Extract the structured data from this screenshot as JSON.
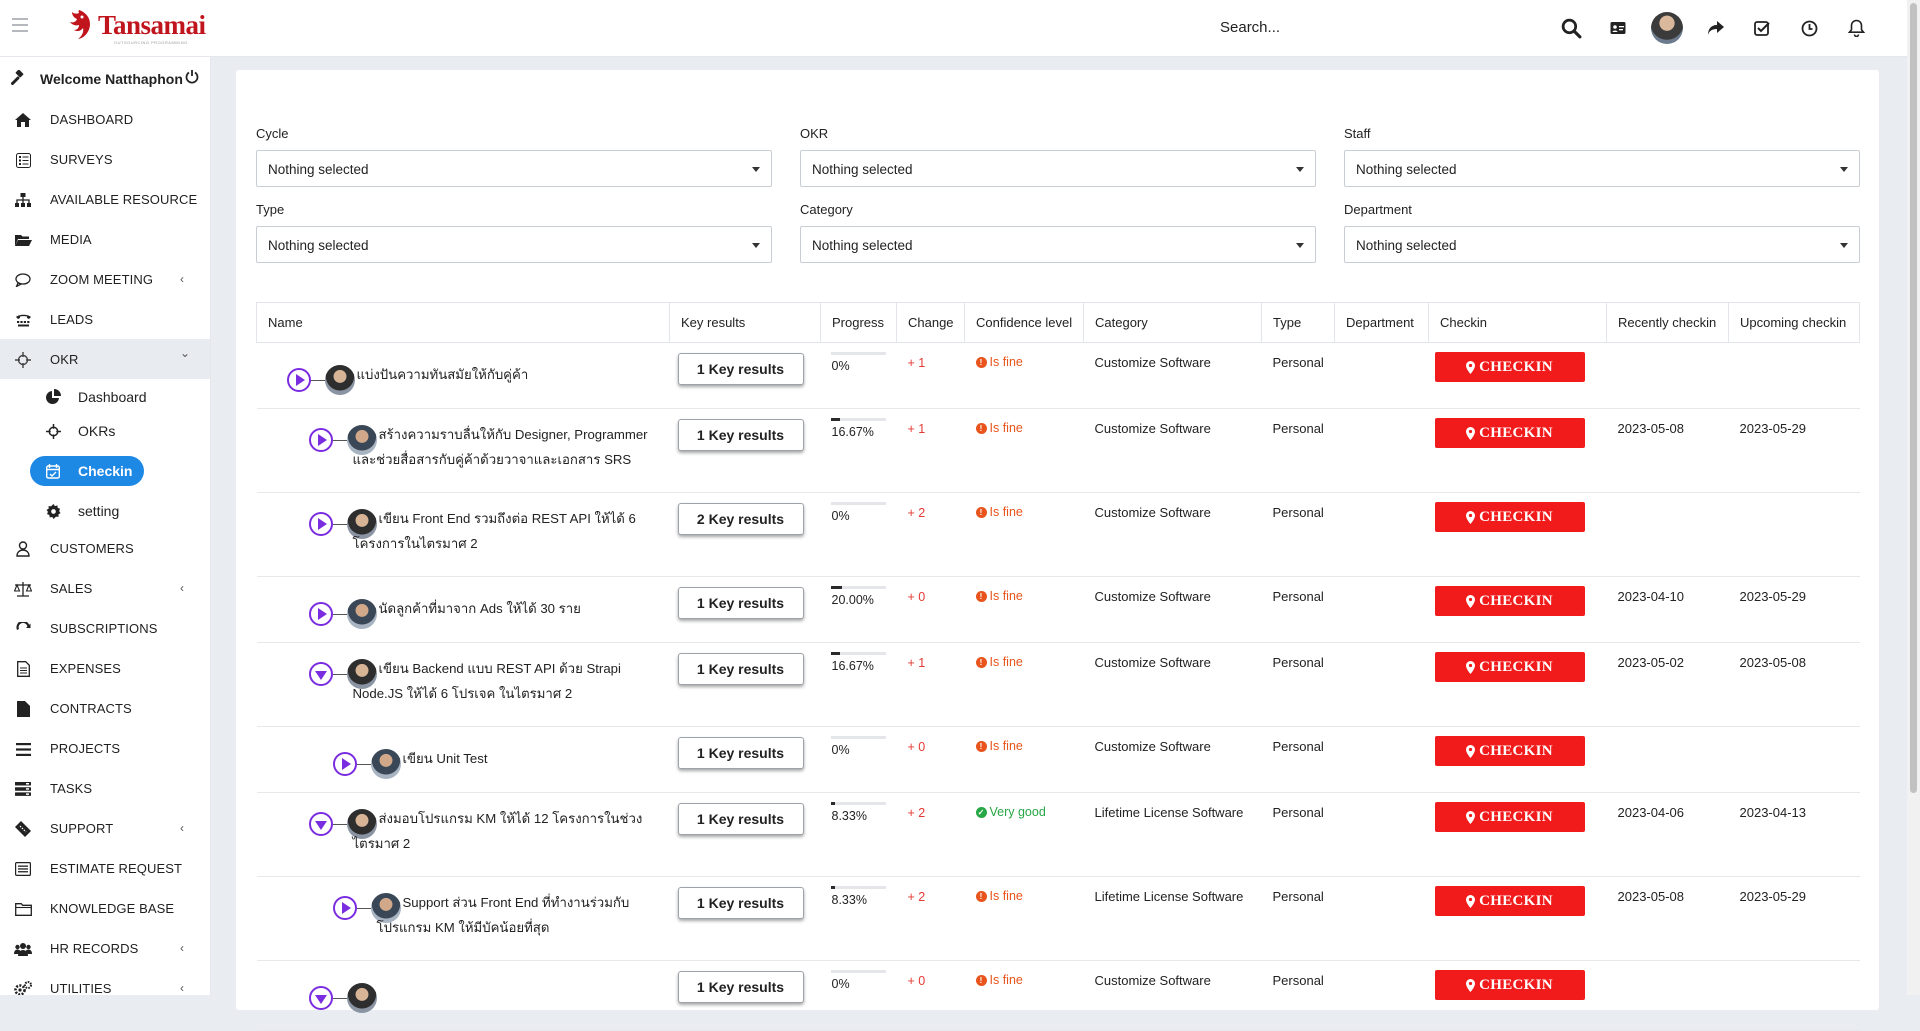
{
  "app": {
    "brand": "Tansamai",
    "brand_tagline": "OUTSOURCING PROGRAMMING"
  },
  "header": {
    "search_placeholder": "Search..."
  },
  "sidebar": {
    "welcome": "Welcome Natthaphon",
    "items": [
      {
        "label": "DASHBOARD",
        "icon": "home-icon"
      },
      {
        "label": "SURVEYS",
        "icon": "survey-icon"
      },
      {
        "label": "AVAILABLE RESOURCE",
        "icon": "sitemap-icon"
      },
      {
        "label": "MEDIA",
        "icon": "folder-open-icon"
      },
      {
        "label": "ZOOM MEETING",
        "icon": "chat-bubble-icon",
        "chevron": "‹"
      },
      {
        "label": "LEADS",
        "icon": "tty-icon"
      },
      {
        "label": "OKR",
        "icon": "crosshairs-icon",
        "chevron": "⌄"
      },
      {
        "label": "CUSTOMERS",
        "icon": "user-icon"
      },
      {
        "label": "SALES",
        "icon": "balance-scale-icon",
        "chevron": "‹"
      },
      {
        "label": "SUBSCRIPTIONS",
        "icon": "refresh-icon"
      },
      {
        "label": "EXPENSES",
        "icon": "file-text-icon"
      },
      {
        "label": "CONTRACTS",
        "icon": "file-icon"
      },
      {
        "label": "PROJECTS",
        "icon": "bars-icon"
      },
      {
        "label": "TASKS",
        "icon": "tasks-icon"
      },
      {
        "label": "SUPPORT",
        "icon": "ticket-icon",
        "chevron": "‹"
      },
      {
        "label": "ESTIMATE REQUEST",
        "icon": "list-alt-icon"
      },
      {
        "label": "KNOWLEDGE BASE",
        "icon": "folder-icon"
      },
      {
        "label": "HR RECORDS",
        "icon": "users-icon",
        "chevron": "‹"
      },
      {
        "label": "UTILITIES",
        "icon": "cogs-icon",
        "chevron": "‹"
      }
    ],
    "okr_sub": [
      {
        "label": "Dashboard",
        "icon": "pie-chart-icon"
      },
      {
        "label": "OKRs",
        "icon": "crosshairs-icon"
      },
      {
        "label": "Checkin",
        "icon": "calendar-check-icon"
      },
      {
        "label": "setting",
        "icon": "gear-icon"
      }
    ]
  },
  "filters": [
    {
      "label": "Cycle",
      "value": "Nothing selected"
    },
    {
      "label": "OKR",
      "value": "Nothing selected"
    },
    {
      "label": "Staff",
      "value": "Nothing selected"
    },
    {
      "label": "Type",
      "value": "Nothing selected"
    },
    {
      "label": "Category",
      "value": "Nothing selected"
    },
    {
      "label": "Department",
      "value": "Nothing selected"
    }
  ],
  "table": {
    "headers": [
      "Name",
      "Key results",
      "Progress",
      "Change",
      "Confidence level",
      "Category",
      "Type",
      "Department",
      "Checkin",
      "Recently checkin",
      "Upcoming checkin"
    ],
    "checkin_label": "CHECKIN",
    "rows": [
      {
        "name": "แบ่งปันความทันสมัยให้กับคู่ค้า",
        "kr": "1 Key results",
        "progress": "0%",
        "pct": 0,
        "change": "+ 1",
        "confidence": "Is fine",
        "category": "Customize Software",
        "type": "Personal",
        "recent": "",
        "upcoming": ""
      },
      {
        "name": "สร้างความราบลื่นให้กับ Designer, Programmer และช่วยสื่อสารกับคู่ค้าด้วยวาจาและเอกสาร SRS",
        "kr": "1 Key results",
        "progress": "16.67%",
        "pct": 16.67,
        "change": "+ 1",
        "confidence": "Is fine",
        "category": "Customize Software",
        "type": "Personal",
        "recent": "2023-05-08",
        "upcoming": "2023-05-29"
      },
      {
        "name": "เขียน Front End รวมถึงต่อ REST API ให้ได้ 6 โครงการในไตรมาศ 2",
        "kr": "2 Key results",
        "progress": "0%",
        "pct": 0,
        "change": "+ 2",
        "confidence": "Is fine",
        "category": "Customize Software",
        "type": "Personal",
        "recent": "",
        "upcoming": ""
      },
      {
        "name": "นัดลูกค้าที่มาจาก Ads ให้ได้ 30 ราย",
        "kr": "1 Key results",
        "progress": "20.00%",
        "pct": 20,
        "change": "+ 0",
        "confidence": "Is fine",
        "category": "Customize Software",
        "type": "Personal",
        "recent": "2023-04-10",
        "upcoming": "2023-05-29"
      },
      {
        "name": "เขียน Backend แบบ REST API ด้วย Strapi Node.JS ให้ได้ 6 โปรเจค ในไตรมาศ 2",
        "kr": "1 Key results",
        "progress": "16.67%",
        "pct": 16.67,
        "change": "+ 1",
        "confidence": "Is fine",
        "category": "Customize Software",
        "type": "Personal",
        "recent": "2023-05-02",
        "upcoming": "2023-05-08"
      },
      {
        "name": "เขียน Unit Test",
        "kr": "1 Key results",
        "progress": "0%",
        "pct": 0,
        "change": "+ 0",
        "confidence": "Is fine",
        "category": "Customize Software",
        "type": "Personal",
        "recent": "",
        "upcoming": ""
      },
      {
        "name": "ส่งมอบโปรแกรม KM ให้ได้ 12 โครงการในช่วงไตรมาศ 2",
        "kr": "1 Key results",
        "progress": "8.33%",
        "pct": 8.33,
        "change": "+ 2",
        "confidence": "Very good",
        "category": "Lifetime License Software",
        "type": "Personal",
        "recent": "2023-04-06",
        "upcoming": "2023-04-13"
      },
      {
        "name": "Support ส่วน Front End ที่ทำงานร่วมกับโปรแกรม KM ให้มีบัคน้อยที่สุด",
        "kr": "1 Key results",
        "progress": "8.33%",
        "pct": 8.33,
        "change": "+ 2",
        "confidence": "Is fine",
        "category": "Lifetime License Software",
        "type": "Personal",
        "recent": "2023-05-08",
        "upcoming": "2023-05-29"
      },
      {
        "name": "",
        "kr": "1 Key results",
        "progress": "0%",
        "pct": 0,
        "change": "+ 0",
        "confidence": "Is fine",
        "category": "Customize Software",
        "type": "Personal",
        "recent": "",
        "upcoming": ""
      }
    ]
  },
  "colors": {
    "accent": "#1e88e5",
    "checkin": "#f21b1b",
    "toggle": "#7a2de0",
    "fine": "#e8541b",
    "good": "#27a745"
  }
}
